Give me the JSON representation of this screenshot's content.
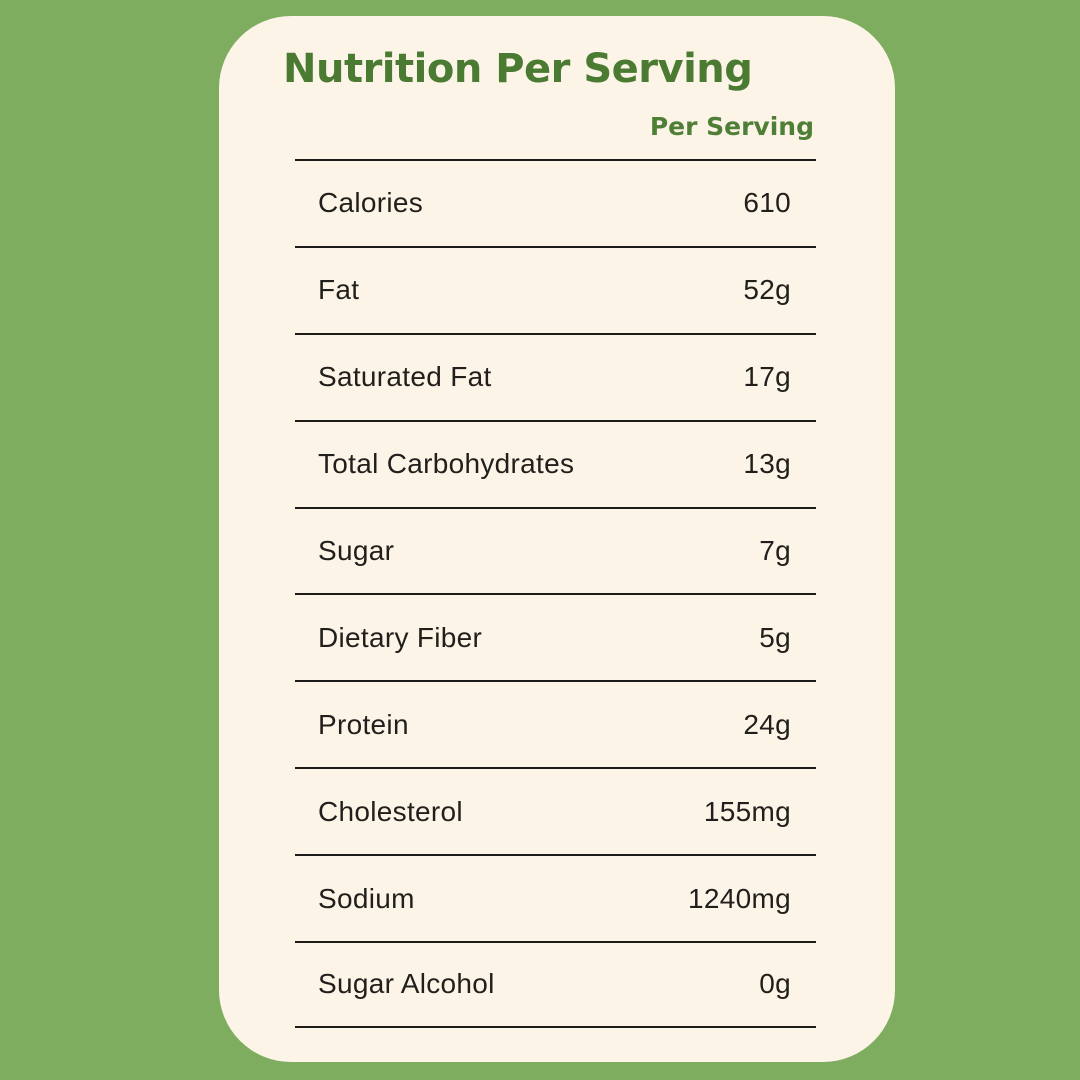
{
  "page": {
    "background_color": "#7ead60"
  },
  "card": {
    "background_color": "#fdf4e8",
    "title": "Nutrition Per Serving",
    "title_color": "#4b7b32"
  },
  "table": {
    "header": "Per Serving",
    "header_color": "#4f7e37",
    "rule_color": "#1d1b18",
    "text_color": "#211f1c",
    "rows": [
      {
        "label": "Calories",
        "value": "610"
      },
      {
        "label": "Fat",
        "value": "52g"
      },
      {
        "label": "Saturated Fat",
        "value": "17g"
      },
      {
        "label": "Total Carbohydrates",
        "value": "13g"
      },
      {
        "label": "Sugar",
        "value": "7g"
      },
      {
        "label": "Dietary Fiber",
        "value": "5g"
      },
      {
        "label": "Protein",
        "value": "24g"
      },
      {
        "label": "Cholesterol",
        "value": "155mg"
      },
      {
        "label": "Sodium",
        "value": "1240mg"
      },
      {
        "label": "Sugar Alcohol",
        "value": "0g"
      }
    ]
  }
}
